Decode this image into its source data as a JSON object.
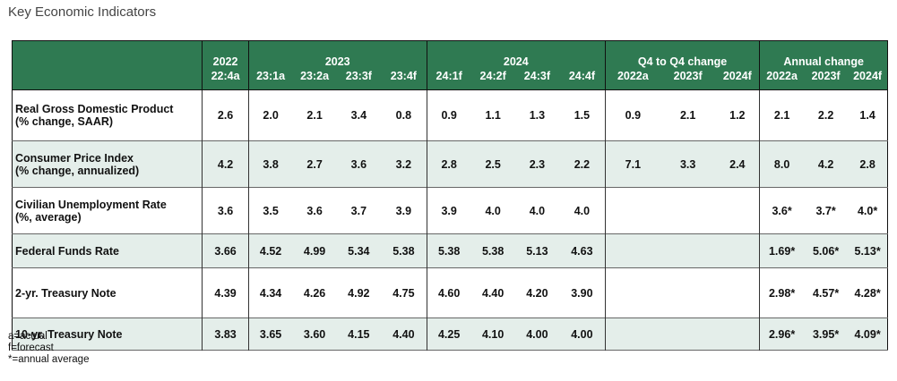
{
  "title": "Key Economic Indicators",
  "header": {
    "groups": [
      "2022",
      "2023",
      "2024",
      "Q4 to Q4 change",
      "Annual change"
    ],
    "columns": [
      "22:4a",
      "23:1a",
      "23:2a",
      "23:3f",
      "23:4f",
      "24:1f",
      "24:2f",
      "24:3f",
      "24:4f",
      "2022a",
      "2023f",
      "2024f",
      "2022a",
      "2023f",
      "2024f"
    ]
  },
  "rows": [
    {
      "label1": "Real Gross Domestic Product",
      "label2": "(% change, SAAR)",
      "values": [
        "2.6",
        "2.0",
        "2.1",
        "3.4",
        "0.8",
        "0.9",
        "1.1",
        "1.3",
        "1.5",
        "0.9",
        "2.1",
        "1.2",
        "2.1",
        "2.2",
        "1.4"
      ]
    },
    {
      "label1": "Consumer Price Index",
      "label2": "(% change, annualized)",
      "values": [
        "4.2",
        "3.8",
        "2.7",
        "3.6",
        "3.2",
        "2.8",
        "2.5",
        "2.3",
        "2.2",
        "7.1",
        "3.3",
        "2.4",
        "8.0",
        "4.2",
        "2.8"
      ]
    },
    {
      "label1": "Civilian Unemployment Rate",
      "label2": "(%, average)",
      "values": [
        "3.6",
        "3.5",
        "3.6",
        "3.7",
        "3.9",
        "3.9",
        "4.0",
        "4.0",
        "4.0",
        "",
        "",
        "",
        "3.6*",
        "3.7*",
        "4.0*"
      ]
    },
    {
      "label1": "Federal Funds Rate",
      "label2": "",
      "values": [
        "3.66",
        "4.52",
        "4.99",
        "5.34",
        "5.38",
        "5.38",
        "5.38",
        "5.13",
        "4.63",
        "",
        "",
        "",
        "1.69*",
        "5.06*",
        "5.13*"
      ]
    },
    {
      "label1": "2-yr. Treasury Note",
      "label2": "",
      "values": [
        "4.39",
        "4.34",
        "4.26",
        "4.92",
        "4.75",
        "4.60",
        "4.40",
        "4.20",
        "3.90",
        "",
        "",
        "",
        "2.98*",
        "4.57*",
        "4.28*"
      ]
    },
    {
      "label1": "10-yr. Treasury Note",
      "label2": "",
      "values": [
        "3.83",
        "3.65",
        "3.60",
        "4.15",
        "4.40",
        "4.25",
        "4.10",
        "4.00",
        "4.00",
        "",
        "",
        "",
        "2.96*",
        "3.95*",
        "4.09*"
      ]
    }
  ],
  "notes": [
    "a=actual",
    "f=forecast",
    "*=annual average"
  ],
  "colors": {
    "header_bg": "#2f7a52",
    "alt_row_bg": "#e4eeea"
  }
}
